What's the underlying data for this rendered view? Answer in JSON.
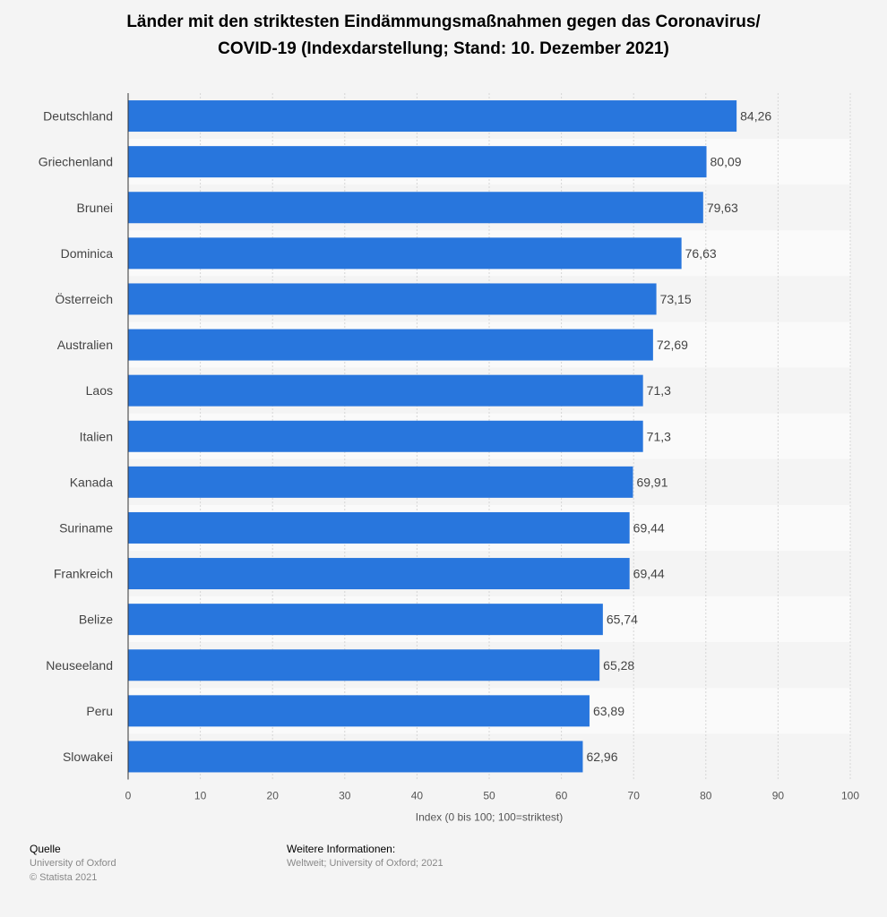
{
  "title_line1": "Länder mit den striktesten Eindämmungsmaßnahmen gegen das Coronavirus/",
  "title_line2": "COVID-19 (Indexdarstellung; Stand: 10. Dezember 2021)",
  "chart_data": {
    "type": "bar",
    "orientation": "horizontal",
    "categories": [
      "Deutschland",
      "Griechenland",
      "Brunei",
      "Dominica",
      "Österreich",
      "Australien",
      "Laos",
      "Italien",
      "Kanada",
      "Suriname",
      "Frankreich",
      "Belize",
      "Neuseeland",
      "Peru",
      "Slowakei"
    ],
    "values": [
      84.26,
      80.09,
      79.63,
      76.63,
      73.15,
      72.69,
      71.3,
      71.3,
      69.91,
      69.44,
      69.44,
      65.74,
      65.28,
      63.89,
      62.96
    ],
    "value_labels": [
      "84,26",
      "80,09",
      "79,63",
      "76,63",
      "73,15",
      "72,69",
      "71,3",
      "71,3",
      "69,91",
      "69,44",
      "69,44",
      "65,74",
      "65,28",
      "63,89",
      "62,96"
    ],
    "xlabel": "Index (0 bis 100; 100=striktest)",
    "xlim": [
      0,
      100
    ],
    "xticks": [
      0,
      10,
      20,
      30,
      40,
      50,
      60,
      70,
      80,
      90,
      100
    ],
    "grid": true,
    "bar_color": "#2876dd"
  },
  "footer": {
    "source_heading": "Quelle",
    "source_line1": "University of Oxford",
    "source_line2": "© Statista 2021",
    "info_heading": "Weitere Informationen:",
    "info_line1": "Weltweit; University of Oxford; 2021"
  }
}
